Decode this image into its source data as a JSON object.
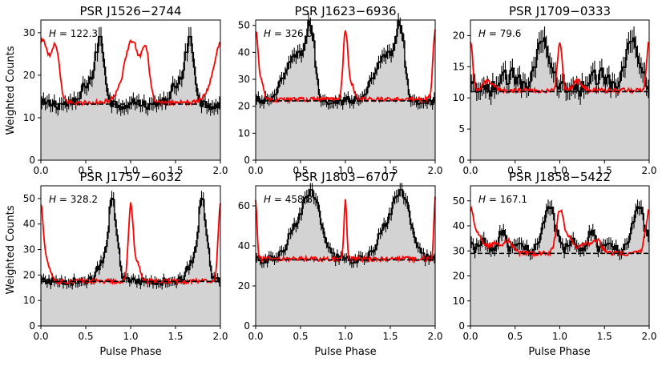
{
  "figure": {
    "ylabel": "Weighted Counts",
    "xlabel": "Pulse Phase"
  },
  "chart_data": [
    {
      "type": "line",
      "title": "PSR J1526−2744",
      "h_label": "H = 122.3",
      "h_value": "122.3",
      "xlim": [
        0,
        2
      ],
      "ylim": [
        0,
        33
      ],
      "xticks": [
        "0.0",
        "0.5",
        "1.0",
        "1.5",
        "2.0"
      ],
      "yticks": [
        0,
        10,
        20,
        30
      ],
      "background": 13.2,
      "gamma_peaks": [
        {
          "phase": 0.66,
          "height": 15,
          "width": 0.05
        },
        {
          "phase": 0.52,
          "height": 5,
          "width": 0.06
        }
      ],
      "radio_level": 13.5,
      "radio_peaks": [
        {
          "phase": 0.02,
          "height": 14,
          "width": 0.08
        },
        {
          "phase": 0.17,
          "height": 11,
          "width": 0.04
        },
        {
          "phase": 0.9,
          "height": 1.5,
          "width": 0.1
        }
      ],
      "color_gamma": "#000000",
      "color_radio": "#ff0000",
      "color_fill": "#d3d3d3"
    },
    {
      "type": "line",
      "title": "PSR J1623−6936",
      "h_label": "H = 326.0",
      "h_value": "326.0",
      "xlim": [
        0,
        2
      ],
      "ylim": [
        0,
        52
      ],
      "xticks": [
        "0.0",
        "0.5",
        "1.0",
        "1.5",
        "2.0"
      ],
      "yticks": [
        0,
        10,
        20,
        30,
        40,
        50
      ],
      "background": 22,
      "gamma_peaks": [
        {
          "phase": 0.62,
          "height": 22,
          "width": 0.04
        },
        {
          "phase": 0.38,
          "height": 10,
          "width": 0.1
        },
        {
          "phase": 0.52,
          "height": 14,
          "width": 0.08
        }
      ],
      "radio_level": 22.5,
      "radio_peaks": [
        {
          "phase": 0.0,
          "height": 25,
          "width": 0.025
        },
        {
          "phase": 0.06,
          "height": 6,
          "width": 0.03
        }
      ],
      "color_gamma": "#000000",
      "color_radio": "#ff0000",
      "color_fill": "#d3d3d3"
    },
    {
      "type": "line",
      "title": "PSR J1709−0333",
      "h_label": "H = 79.6",
      "h_value": "79.6",
      "xlim": [
        0,
        2
      ],
      "ylim": [
        0,
        22.5
      ],
      "xticks": [
        "0.0",
        "0.5",
        "1.0",
        "1.5",
        "2.0"
      ],
      "yticks": [
        0,
        5,
        10,
        15,
        20
      ],
      "background": 11,
      "gamma_peaks": [
        {
          "phase": 0.82,
          "height": 8,
          "width": 0.09
        },
        {
          "phase": 0.45,
          "height": 2.5,
          "width": 0.12
        }
      ],
      "radio_level": 11.2,
      "radio_peaks": [
        {
          "phase": 0.0,
          "height": 8,
          "width": 0.025
        },
        {
          "phase": 0.2,
          "height": 1.5,
          "width": 0.05
        }
      ],
      "color_gamma": "#000000",
      "color_radio": "#ff0000",
      "color_fill": "#d3d3d3"
    },
    {
      "type": "line",
      "title": "PSR J1757−6032",
      "h_label": "H = 328.2",
      "h_value": "328.2",
      "xlim": [
        0,
        2
      ],
      "ylim": [
        0,
        55
      ],
      "xticks": [
        "0.0",
        "0.5",
        "1.0",
        "1.5",
        "2.0"
      ],
      "yticks": [
        0,
        10,
        20,
        30,
        40,
        50
      ],
      "background": 17.5,
      "gamma_peaks": [
        {
          "phase": 0.8,
          "height": 30,
          "width": 0.05
        },
        {
          "phase": 0.68,
          "height": 6,
          "width": 0.06
        }
      ],
      "radio_level": 17.5,
      "radio_peaks": [
        {
          "phase": 0.0,
          "height": 28,
          "width": 0.025
        },
        {
          "phase": 0.06,
          "height": 8,
          "width": 0.04
        }
      ],
      "color_gamma": "#000000",
      "color_radio": "#ff0000",
      "color_fill": "#d3d3d3"
    },
    {
      "type": "line",
      "title": "PSR J1803−6707",
      "h_label": "H = 458.8",
      "h_value": "458.8",
      "xlim": [
        0,
        2
      ],
      "ylim": [
        0,
        70
      ],
      "xticks": [
        "0.0",
        "0.5",
        "1.0",
        "1.5",
        "2.0"
      ],
      "yticks": [
        0,
        20,
        40,
        60
      ],
      "background": 33,
      "gamma_peaks": [
        {
          "phase": 0.64,
          "height": 30,
          "width": 0.1
        },
        {
          "phase": 0.45,
          "height": 14,
          "width": 0.1
        }
      ],
      "radio_level": 33.5,
      "radio_peaks": [
        {
          "phase": 0.0,
          "height": 30,
          "width": 0.015
        }
      ],
      "color_gamma": "#000000",
      "color_radio": "#ff0000",
      "color_fill": "#d3d3d3"
    },
    {
      "type": "line",
      "title": "PSR J1858−5422",
      "h_label": "H = 167.1",
      "h_value": "167.1",
      "xlim": [
        0,
        2
      ],
      "ylim": [
        0,
        56
      ],
      "xticks": [
        "0.0",
        "0.5",
        "1.0",
        "1.5",
        "2.0"
      ],
      "yticks": [
        0,
        10,
        20,
        30,
        40,
        50
      ],
      "background": 29,
      "gamma_peaks": [
        {
          "phase": 0.88,
          "height": 18,
          "width": 0.07
        },
        {
          "phase": 0.35,
          "height": 8,
          "width": 0.05
        },
        {
          "phase": 0.15,
          "height": 6,
          "width": 0.05
        },
        {
          "phase": 0.55,
          "height": 6,
          "width": 0.05
        }
      ],
      "radio_level": 29,
      "radio_peaks": [
        {
          "phase": 0.0,
          "height": 16,
          "width": 0.04
        },
        {
          "phase": 0.1,
          "height": 6,
          "width": 0.06
        },
        {
          "phase": 0.28,
          "height": 4,
          "width": 0.05
        },
        {
          "phase": 0.42,
          "height": 5,
          "width": 0.05
        }
      ],
      "color_gamma": "#000000",
      "color_radio": "#ff0000",
      "color_fill": "#d3d3d3"
    }
  ]
}
